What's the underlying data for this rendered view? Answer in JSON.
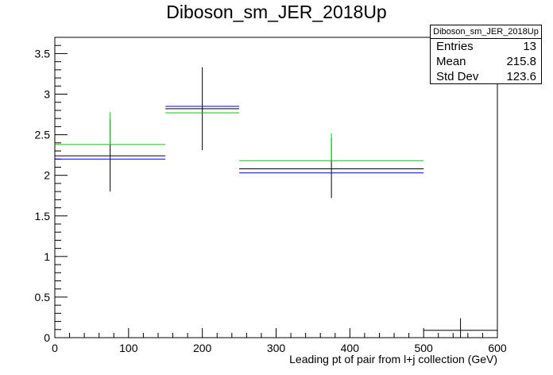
{
  "chart_data": {
    "type": "histogram",
    "title": "Diboson_sm_JER_2018Up",
    "xlabel": "Leading pt of pair from l+j collection (GeV)",
    "ylabel": "",
    "xlim": [
      0,
      600
    ],
    "ylim": [
      0,
      3.7
    ],
    "x_ticks": [
      0,
      100,
      200,
      300,
      400,
      500,
      600
    ],
    "y_ticks": [
      0,
      0.5,
      1,
      1.5,
      2,
      2.5,
      3,
      3.5
    ],
    "x_tick_labels": [
      "0",
      "100",
      "200",
      "300",
      "400",
      "500",
      "600"
    ],
    "y_tick_labels": [
      "0",
      "0.5",
      "1",
      "1.5",
      "2",
      "2.5",
      "3",
      "3.5"
    ],
    "bins": [
      {
        "low": 0,
        "high": 150
      },
      {
        "low": 150,
        "high": 250
      },
      {
        "low": 250,
        "high": 500
      },
      {
        "low": 500,
        "high": 600
      }
    ],
    "series": [
      {
        "color": "#000000",
        "values": [
          2.24,
          2.82,
          2.08,
          0.09
        ],
        "errors": [
          [
            1.8,
            2.69
          ],
          [
            2.31,
            3.33
          ],
          [
            1.72,
            2.46
          ],
          [
            0.0,
            0.24
          ]
        ]
      },
      {
        "color": "#0000ff",
        "values": [
          2.2,
          2.85,
          2.03,
          0.0
        ]
      },
      {
        "color": "#00cc00",
        "values": [
          2.38,
          2.77,
          2.18,
          0.0
        ],
        "errors": [
          [
            null,
            2.78
          ],
          [
            null,
            null
          ],
          [
            null,
            2.52
          ],
          [
            null,
            null
          ]
        ]
      }
    ],
    "stats": {
      "name": "Diboson_sm_JER_2018Up",
      "entries_label": "Entries",
      "entries": "13",
      "mean_label": "Mean",
      "mean": "215.8",
      "stddev_label": "Std Dev",
      "stddev": "123.6"
    }
  }
}
